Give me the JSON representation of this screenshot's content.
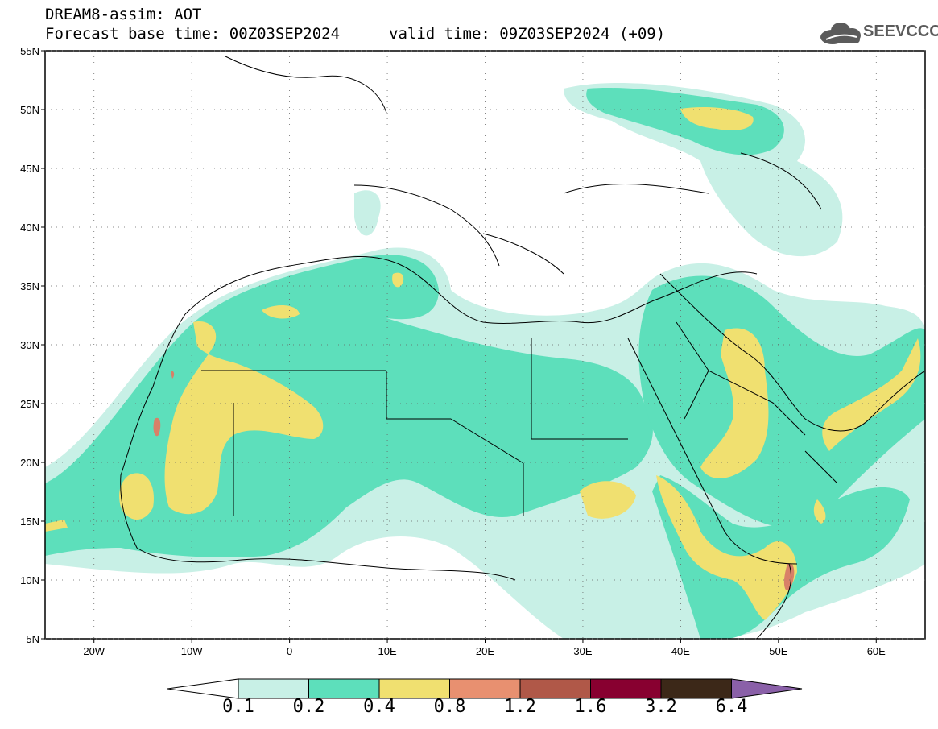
{
  "header": {
    "title": "DREAM8-assim: AOT",
    "base_time": "Forecast base time: 00Z03SEP2024",
    "valid_time": "valid time: 09Z03SEP2024 (+09)",
    "logo_text": "SEEVCCC",
    "logo_icon": "cloud-icon"
  },
  "map": {
    "projection": "lat-lon",
    "lon_range": [
      -25,
      65
    ],
    "lat_range": [
      5,
      55
    ],
    "lat_ticks": [
      "5N",
      "10N",
      "15N",
      "20N",
      "25N",
      "30N",
      "35N",
      "40N",
      "45N",
      "50N",
      "55N"
    ],
    "lon_ticks": [
      "20W",
      "10W",
      "0",
      "10E",
      "20E",
      "30E",
      "40E",
      "50E",
      "60E"
    ],
    "grid": "dotted"
  },
  "legend": {
    "labels": [
      "0.1",
      "0.2",
      "0.4",
      "0.8",
      "1.2",
      "1.6",
      "3.2",
      "6.4"
    ],
    "colors": [
      "#ffffff",
      "#c8f0e6",
      "#5ddfbb",
      "#f0e070",
      "#e89070",
      "#b05848",
      "#880030",
      "#3c2818",
      "#8a60a8"
    ]
  }
}
